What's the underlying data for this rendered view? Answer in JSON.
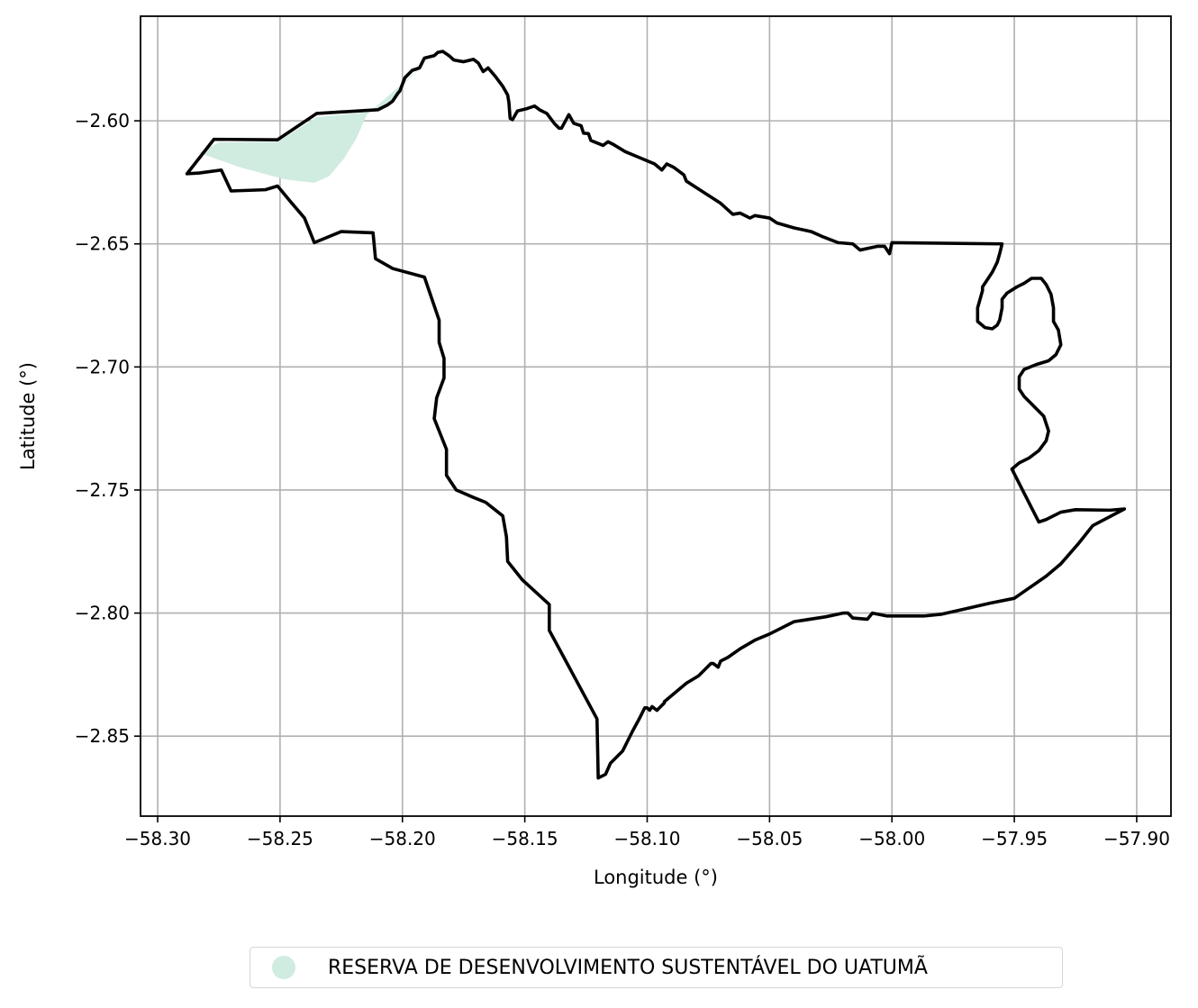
{
  "chart_data": {
    "type": "map",
    "xlabel": "Longitude (°)",
    "ylabel": "Latitude (°)",
    "xlim": [
      -58.307,
      -57.886
    ],
    "ylim": [
      -2.8825,
      -2.5575
    ],
    "x_ticks": [
      -58.3,
      -58.25,
      -58.2,
      -58.15,
      -58.1,
      -58.05,
      -58.0,
      -57.95,
      -57.9
    ],
    "x_tick_labels": [
      "−58.30",
      "−58.25",
      "−58.20",
      "−58.15",
      "−58.10",
      "−58.05",
      "−58.00",
      "−57.95",
      "−57.90"
    ],
    "y_ticks": [
      -2.6,
      -2.65,
      -2.7,
      -2.75,
      -2.8,
      -2.85
    ],
    "y_tick_labels": [
      "−2.60",
      "−2.65",
      "−2.70",
      "−2.75",
      "−2.80",
      "−2.85"
    ],
    "grid": true,
    "legend_position": "bottom-center",
    "outline": {
      "name": "",
      "color": "#000000",
      "coordinates": [
        [
          -58.288,
          -2.6215
        ],
        [
          -58.277,
          -2.6075
        ],
        [
          -58.251,
          -2.6077
        ],
        [
          -58.235,
          -2.597
        ],
        [
          -58.21,
          -2.5955
        ],
        [
          -58.206,
          -2.5935
        ],
        [
          -58.204,
          -2.592
        ],
        [
          -58.202,
          -2.589
        ],
        [
          -58.201,
          -2.5878
        ],
        [
          -58.199,
          -2.5825
        ],
        [
          -58.196,
          -2.5795
        ],
        [
          -58.193,
          -2.5785
        ],
        [
          -58.191,
          -2.5745
        ],
        [
          -58.187,
          -2.5735
        ],
        [
          -58.1855,
          -2.5722
        ],
        [
          -58.1835,
          -2.5718
        ],
        [
          -58.181,
          -2.5735
        ],
        [
          -58.179,
          -2.5753
        ],
        [
          -58.175,
          -2.576
        ],
        [
          -58.171,
          -2.575
        ],
        [
          -58.169,
          -2.5765
        ],
        [
          -58.167,
          -2.58
        ],
        [
          -58.165,
          -2.5785
        ],
        [
          -58.162,
          -2.582
        ],
        [
          -58.159,
          -2.586
        ],
        [
          -58.157,
          -2.5895
        ],
        [
          -58.1565,
          -2.5925
        ],
        [
          -58.156,
          -2.599
        ],
        [
          -58.155,
          -2.5995
        ],
        [
          -58.153,
          -2.596
        ],
        [
          -58.149,
          -2.595
        ],
        [
          -58.146,
          -2.594
        ],
        [
          -58.144,
          -2.5955
        ],
        [
          -58.141,
          -2.597
        ],
        [
          -58.138,
          -2.601
        ],
        [
          -58.136,
          -2.603
        ],
        [
          -58.135,
          -2.603
        ],
        [
          -58.132,
          -2.5975
        ],
        [
          -58.13,
          -2.601
        ],
        [
          -58.127,
          -2.602
        ],
        [
          -58.126,
          -2.605
        ],
        [
          -58.124,
          -2.6052
        ],
        [
          -58.123,
          -2.608
        ],
        [
          -58.118,
          -2.61
        ],
        [
          -58.116,
          -2.6085
        ],
        [
          -58.114,
          -2.6095
        ],
        [
          -58.109,
          -2.6125
        ],
        [
          -58.103,
          -2.615
        ],
        [
          -58.097,
          -2.6175
        ],
        [
          -58.094,
          -2.62
        ],
        [
          -58.092,
          -2.6175
        ],
        [
          -58.089,
          -2.619
        ],
        [
          -58.085,
          -2.622
        ],
        [
          -58.084,
          -2.6245
        ],
        [
          -58.077,
          -2.629
        ],
        [
          -58.07,
          -2.6335
        ],
        [
          -58.065,
          -2.638
        ],
        [
          -58.062,
          -2.6375
        ],
        [
          -58.058,
          -2.6395
        ],
        [
          -58.056,
          -2.6385
        ],
        [
          -58.05,
          -2.6395
        ],
        [
          -58.047,
          -2.6415
        ],
        [
          -58.04,
          -2.6435
        ],
        [
          -58.033,
          -2.645
        ],
        [
          -58.028,
          -2.6472
        ],
        [
          -58.022,
          -2.6495
        ],
        [
          -58.016,
          -2.65
        ],
        [
          -58.013,
          -2.6525
        ],
        [
          -58.006,
          -2.651
        ],
        [
          -58.003,
          -2.651
        ],
        [
          -58.001,
          -2.654
        ],
        [
          -58.0,
          -2.6495
        ],
        [
          -57.955,
          -2.65
        ],
        [
          -57.956,
          -2.654
        ],
        [
          -57.957,
          -2.6575
        ],
        [
          -57.959,
          -2.6615
        ],
        [
          -57.961,
          -2.6645
        ],
        [
          -57.963,
          -2.6675
        ],
        [
          -57.963,
          -2.669
        ],
        [
          -57.965,
          -2.676
        ],
        [
          -57.965,
          -2.6815
        ],
        [
          -57.962,
          -2.684
        ],
        [
          -57.959,
          -2.6845
        ],
        [
          -57.957,
          -2.683
        ],
        [
          -57.956,
          -2.681
        ],
        [
          -57.955,
          -2.676
        ],
        [
          -57.955,
          -2.6725
        ],
        [
          -57.953,
          -2.67
        ],
        [
          -57.949,
          -2.6675
        ],
        [
          -57.946,
          -2.666
        ],
        [
          -57.943,
          -2.664
        ],
        [
          -57.939,
          -2.664
        ],
        [
          -57.937,
          -2.6665
        ],
        [
          -57.935,
          -2.6705
        ],
        [
          -57.934,
          -2.676
        ],
        [
          -57.934,
          -2.6815
        ],
        [
          -57.932,
          -2.685
        ],
        [
          -57.931,
          -2.691
        ],
        [
          -57.933,
          -2.695
        ],
        [
          -57.936,
          -2.6975
        ],
        [
          -57.941,
          -2.699
        ],
        [
          -57.946,
          -2.701
        ],
        [
          -57.948,
          -2.704
        ],
        [
          -57.948,
          -2.709
        ],
        [
          -57.946,
          -2.712
        ],
        [
          -57.942,
          -2.716
        ],
        [
          -57.938,
          -2.72
        ],
        [
          -57.936,
          -2.726
        ],
        [
          -57.937,
          -2.73
        ],
        [
          -57.94,
          -2.734
        ],
        [
          -57.944,
          -2.737
        ],
        [
          -57.948,
          -2.739
        ],
        [
          -57.951,
          -2.7415
        ],
        [
          -57.94,
          -2.763
        ],
        [
          -57.937,
          -2.762
        ],
        [
          -57.931,
          -2.759
        ],
        [
          -57.925,
          -2.758
        ],
        [
          -57.911,
          -2.7582
        ],
        [
          -57.905,
          -2.7577
        ],
        [
          -57.918,
          -2.7645
        ],
        [
          -57.924,
          -2.772
        ],
        [
          -57.931,
          -2.78
        ],
        [
          -57.937,
          -2.785
        ],
        [
          -57.95,
          -2.794
        ],
        [
          -57.96,
          -2.796
        ],
        [
          -57.971,
          -2.7985
        ],
        [
          -57.98,
          -2.8005
        ],
        [
          -57.987,
          -2.8012
        ],
        [
          -58.002,
          -2.8012
        ],
        [
          -58.008,
          -2.8
        ],
        [
          -58.01,
          -2.8025
        ],
        [
          -58.016,
          -2.802
        ],
        [
          -58.018,
          -2.8
        ],
        [
          -58.02,
          -2.8
        ],
        [
          -58.027,
          -2.8015
        ],
        [
          -58.04,
          -2.8035
        ],
        [
          -58.05,
          -2.8085
        ],
        [
          -58.056,
          -2.811
        ],
        [
          -58.062,
          -2.8145
        ],
        [
          -58.067,
          -2.818
        ],
        [
          -58.07,
          -2.8195
        ],
        [
          -58.071,
          -2.822
        ],
        [
          -58.073,
          -2.8205
        ],
        [
          -58.074,
          -2.8205
        ],
        [
          -58.079,
          -2.8255
        ],
        [
          -58.084,
          -2.8285
        ],
        [
          -58.09,
          -2.8335
        ],
        [
          -58.093,
          -2.836
        ],
        [
          -58.093,
          -2.8365
        ],
        [
          -58.096,
          -2.8395
        ],
        [
          -58.098,
          -2.838
        ],
        [
          -58.099,
          -2.8395
        ],
        [
          -58.1,
          -2.8385
        ],
        [
          -58.101,
          -2.8385
        ],
        [
          -58.103,
          -2.8425
        ],
        [
          -58.106,
          -2.848
        ],
        [
          -58.11,
          -2.856
        ],
        [
          -58.115,
          -2.861
        ],
        [
          -58.117,
          -2.8655
        ],
        [
          -58.12,
          -2.867
        ],
        [
          -58.1205,
          -2.843
        ],
        [
          -58.14,
          -2.807
        ],
        [
          -58.14,
          -2.7965
        ],
        [
          -58.151,
          -2.7865
        ],
        [
          -58.157,
          -2.779
        ],
        [
          -58.1575,
          -2.769
        ],
        [
          -58.159,
          -2.7605
        ],
        [
          -58.166,
          -2.755
        ],
        [
          -58.171,
          -2.753
        ],
        [
          -58.178,
          -2.75
        ],
        [
          -58.182,
          -2.744
        ],
        [
          -58.182,
          -2.7335
        ],
        [
          -58.187,
          -2.721
        ],
        [
          -58.186,
          -2.7125
        ],
        [
          -58.183,
          -2.7045
        ],
        [
          -58.183,
          -2.6965
        ],
        [
          -58.185,
          -2.69
        ],
        [
          -58.185,
          -2.681
        ],
        [
          -58.191,
          -2.6635
        ],
        [
          -58.204,
          -2.66
        ],
        [
          -58.211,
          -2.656
        ],
        [
          -58.212,
          -2.6455
        ],
        [
          -58.225,
          -2.645
        ],
        [
          -58.236,
          -2.6495
        ],
        [
          -58.24,
          -2.6395
        ],
        [
          -58.246,
          -2.6325
        ],
        [
          -58.251,
          -2.6265
        ],
        [
          -58.256,
          -2.628
        ],
        [
          -58.27,
          -2.6285
        ],
        [
          -58.274,
          -2.62
        ],
        [
          -58.283,
          -2.6212
        ],
        [
          -58.288,
          -2.6215
        ]
      ]
    },
    "areas": [
      {
        "name": "RESERVA DE DESENVOLVIMENTO SUSTENTÁVEL DO UATUMÃ",
        "color": "#d0ebe0",
        "coordinates": [
          [
            -58.283,
            -2.613
          ],
          [
            -58.275,
            -2.6088
          ],
          [
            -58.251,
            -2.6085
          ],
          [
            -58.235,
            -2.5985
          ],
          [
            -58.211,
            -2.5962
          ],
          [
            -58.203,
            -2.5905
          ],
          [
            -58.2,
            -2.5855
          ],
          [
            -58.193,
            -2.579
          ],
          [
            -58.186,
            -2.5735
          ],
          [
            -58.192,
            -2.578
          ],
          [
            -58.199,
            -2.584
          ],
          [
            -58.2145,
            -2.5975
          ],
          [
            -58.219,
            -2.6075
          ],
          [
            -58.224,
            -2.6155
          ],
          [
            -58.23,
            -2.6225
          ],
          [
            -58.236,
            -2.6252
          ],
          [
            -58.248,
            -2.6238
          ],
          [
            -58.266,
            -2.619
          ],
          [
            -58.276,
            -2.6155
          ],
          [
            -58.283,
            -2.613
          ]
        ]
      }
    ]
  },
  "legend": {
    "items": [
      {
        "label": "RESERVA DE DESENVOLVIMENTO SUSTENTÁVEL DO UATUMÃ",
        "color": "#d0ebe0"
      }
    ]
  }
}
